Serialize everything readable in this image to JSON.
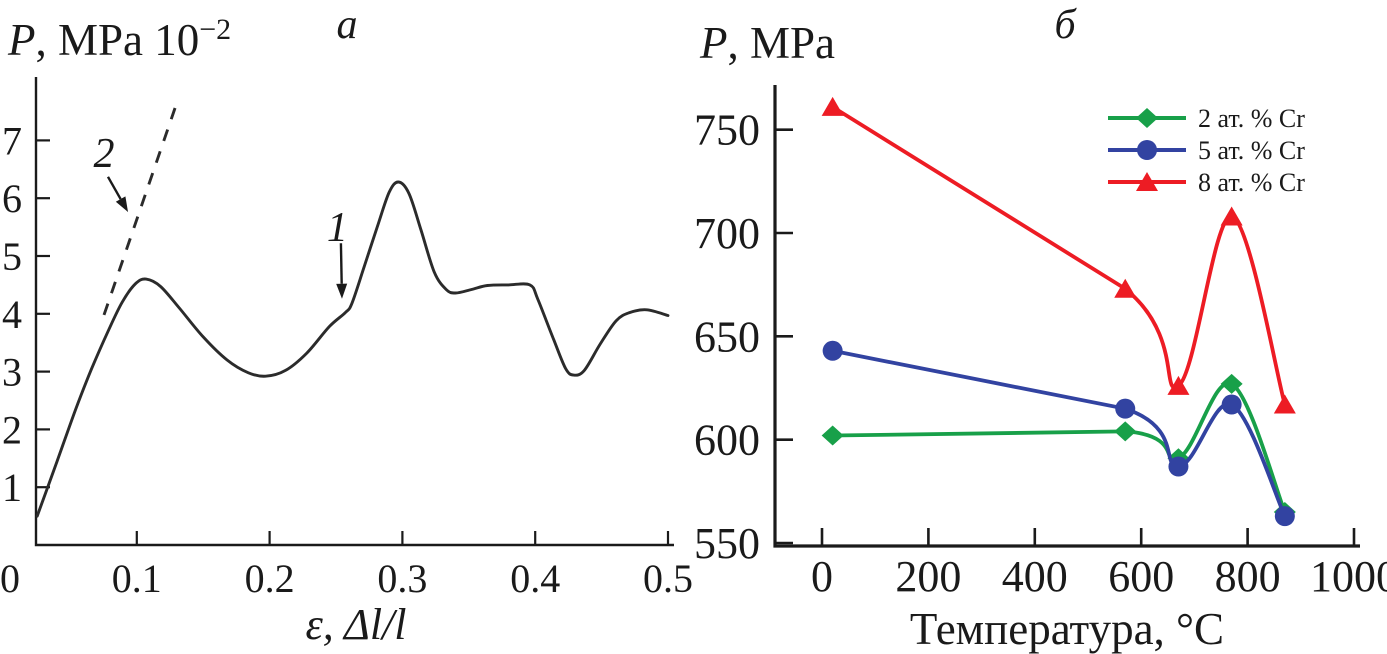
{
  "chart_data": [
    {
      "type": "line",
      "panel_label": "a",
      "title": {
        "var": "P",
        "rest": ", MPa 10",
        "sup": "−2"
      },
      "xlabel": "ε, Δl/l",
      "xlim": [
        0,
        0.5
      ],
      "ylim": [
        0,
        8.1
      ],
      "xticks": [
        0,
        0.1,
        0.2,
        0.3,
        0.4,
        0.5
      ],
      "yticks": [
        1,
        2,
        3,
        4,
        5,
        6,
        7
      ],
      "grid": false,
      "curve_color": "#2b2b2b",
      "stress_strain_curve": [
        [
          0.025,
          0.5
        ],
        [
          0.04,
          1.45
        ],
        [
          0.054,
          2.35
        ],
        [
          0.066,
          3.05
        ],
        [
          0.078,
          3.68
        ],
        [
          0.089,
          4.2
        ],
        [
          0.099,
          4.52
        ],
        [
          0.107,
          4.6
        ],
        [
          0.118,
          4.47
        ],
        [
          0.132,
          4.1
        ],
        [
          0.15,
          3.6
        ],
        [
          0.168,
          3.2
        ],
        [
          0.184,
          2.98
        ],
        [
          0.197,
          2.92
        ],
        [
          0.212,
          3.02
        ],
        [
          0.228,
          3.32
        ],
        [
          0.245,
          3.78
        ],
        [
          0.257,
          4.02
        ],
        [
          0.262,
          4.18
        ],
        [
          0.271,
          4.8
        ],
        [
          0.281,
          5.5
        ],
        [
          0.29,
          6.1
        ],
        [
          0.297,
          6.28
        ],
        [
          0.305,
          6.08
        ],
        [
          0.314,
          5.45
        ],
        [
          0.324,
          4.72
        ],
        [
          0.333,
          4.42
        ],
        [
          0.34,
          4.36
        ],
        [
          0.352,
          4.42
        ],
        [
          0.364,
          4.49
        ],
        [
          0.38,
          4.5
        ],
        [
          0.396,
          4.5
        ],
        [
          0.402,
          4.25
        ],
        [
          0.414,
          3.55
        ],
        [
          0.423,
          3.05
        ],
        [
          0.429,
          2.94
        ],
        [
          0.437,
          3.02
        ],
        [
          0.449,
          3.48
        ],
        [
          0.461,
          3.88
        ],
        [
          0.471,
          4.02
        ],
        [
          0.484,
          4.07
        ],
        [
          0.5,
          3.97
        ]
      ],
      "elastic_dashed_line": {
        "from": [
          0.0753,
          3.98
        ],
        "to": [
          0.1288,
          7.56
        ]
      },
      "annotations": [
        {
          "label": "1",
          "label_at": [
            0.251,
            5.52
          ],
          "arrow_from": [
            0.2537,
            5.22
          ],
          "arrow_to": [
            0.2545,
            4.26
          ]
        },
        {
          "label": "2",
          "label_at": [
            0.0753,
            6.8
          ],
          "arrow_from": [
            0.0783,
            6.37
          ],
          "arrow_to": [
            0.0934,
            5.76
          ]
        }
      ]
    },
    {
      "type": "line",
      "panel_label": "б",
      "title": {
        "var": "P",
        "rest": ", MPa"
      },
      "xlabel": "Температура, °C",
      "xlim": [
        0,
        1000
      ],
      "ylim": [
        550,
        772
      ],
      "xticks": [
        0,
        200,
        400,
        600,
        800,
        1000
      ],
      "yticks": [
        550,
        600,
        650,
        700,
        750
      ],
      "grid": false,
      "legend_position": "upper right",
      "x": [
        20,
        570,
        670,
        770,
        870
      ],
      "series": [
        {
          "name": "2 ат. % Cr",
          "marker": "diamond",
          "color": "#18a049",
          "values": [
            602,
            604,
            591,
            627,
            565
          ]
        },
        {
          "name": "5 ат. % Cr",
          "marker": "circle",
          "color": "#3243a1",
          "values": [
            643,
            615,
            587,
            617,
            563
          ]
        },
        {
          "name": "8 ат. % Cr",
          "marker": "triangle",
          "color": "#ed1c24",
          "values": [
            761,
            673,
            626,
            708,
            617
          ]
        }
      ]
    }
  ]
}
